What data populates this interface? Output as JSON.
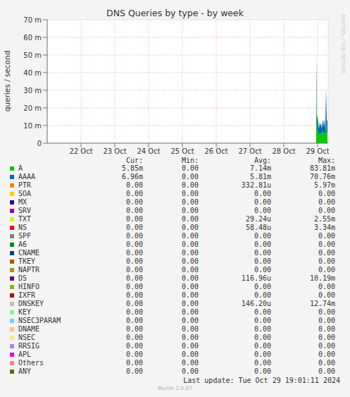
{
  "chart_data": {
    "type": "area",
    "title": "DNS Queries by type - by week",
    "y_label": "queries / second",
    "stacked": true,
    "grid": true,
    "x": [
      29.4583,
      29.4792,
      29.5,
      29.5208,
      29.5417,
      29.5625,
      29.5833,
      29.6042,
      29.625,
      29.6458,
      29.6667,
      29.6875,
      29.7083,
      29.7292,
      29.75,
      29.7708,
      29.7917
    ],
    "xlim": [
      21.5,
      29.8125
    ],
    "xticks": [
      {
        "value": 22.5,
        "label": "22 Oct"
      },
      {
        "value": 23.5,
        "label": "23 Oct"
      },
      {
        "value": 24.5,
        "label": "24 Oct"
      },
      {
        "value": 25.5,
        "label": "25 Oct"
      },
      {
        "value": 26.5,
        "label": "26 Oct"
      },
      {
        "value": 27.5,
        "label": "27 Oct"
      },
      {
        "value": 28.5,
        "label": "28 Oct"
      },
      {
        "value": 29.5,
        "label": "29 Oct"
      }
    ],
    "ylim": [
      0,
      0.07
    ],
    "yticks": [
      0,
      {
        "value": 0.01,
        "label": "10 m"
      },
      {
        "value": 0.02,
        "label": "20 m"
      },
      {
        "value": 0.03,
        "label": "30 m"
      },
      {
        "value": 0.04,
        "label": "40 m"
      },
      {
        "value": 0.05,
        "label": "50 m"
      },
      {
        "value": 0.06,
        "label": "60 m"
      },
      {
        "value": 0.07,
        "label": "70 m"
      }
    ],
    "legend_headers": [
      "Cur:",
      "Min:",
      "Avg:",
      "Max:"
    ],
    "footer": "Last update: Tue Oct 29 19:01:11 2024",
    "version": "Munin 2.0.67",
    "watermark": "RRDTOOL / TOBI OETIKER",
    "series": [
      {
        "name": "A",
        "color": "#00cc00",
        "values": [
          0.034,
          0.012,
          0.008,
          0.006,
          0.005,
          0.005,
          0.006,
          0.005,
          0.005,
          0.007,
          0.006,
          0.005,
          0.006,
          0.005,
          0.014,
          0.006,
          0.00585
        ],
        "stats": {
          "cur": "5.85m",
          "min": "0.00",
          "avg": "7.14m",
          "max": "83.81m"
        }
      },
      {
        "name": "AAAA",
        "color": "#0066b3",
        "values": [
          0.016,
          0.004,
          0.006,
          0.005,
          0.003,
          0.007,
          0.004,
          0.006,
          0.003,
          0.005,
          0.007,
          0.004,
          0.008,
          0.004,
          0.017,
          0.007,
          0.00696
        ],
        "stats": {
          "cur": "6.96m",
          "min": "0.00",
          "avg": "5.81m",
          "max": "70.76m"
        }
      },
      {
        "name": "PTR",
        "color": "#ff8000",
        "values": [
          0,
          0,
          0,
          0,
          0,
          0,
          0,
          0,
          0,
          0,
          0,
          0,
          0,
          0,
          0,
          0,
          0
        ],
        "stats": {
          "cur": "0.00",
          "min": "0.00",
          "avg": "332.81u",
          "max": "5.97m"
        }
      },
      {
        "name": "SOA",
        "color": "#ffcc00",
        "values": [
          0,
          0,
          0,
          0,
          0,
          0,
          0,
          0,
          0,
          0,
          0,
          0,
          0,
          0,
          0,
          0,
          0
        ],
        "stats": {
          "cur": "0.00",
          "min": "0.00",
          "avg": "0.00",
          "max": "0.00"
        }
      },
      {
        "name": "MX",
        "color": "#330099",
        "values": [
          0,
          0,
          0,
          0,
          0,
          0,
          0,
          0,
          0,
          0,
          0,
          0,
          0,
          0,
          0,
          0,
          0
        ],
        "stats": {
          "cur": "0.00",
          "min": "0.00",
          "avg": "0.00",
          "max": "0.00"
        }
      },
      {
        "name": "SRV",
        "color": "#990099",
        "values": [
          0,
          0,
          0,
          0,
          0,
          0,
          0,
          0,
          0,
          0,
          0,
          0,
          0,
          0,
          0,
          0,
          0
        ],
        "stats": {
          "cur": "0.00",
          "min": "0.00",
          "avg": "0.00",
          "max": "0.00"
        }
      },
      {
        "name": "TXT",
        "color": "#ccff00",
        "values": [
          0,
          0,
          0,
          0,
          0,
          0,
          0,
          0,
          0,
          0,
          0,
          0,
          0,
          0,
          0,
          0,
          0
        ],
        "stats": {
          "cur": "0.00",
          "min": "0.00",
          "avg": "29.24u",
          "max": "2.55m"
        }
      },
      {
        "name": "NS",
        "color": "#ff0000",
        "values": [
          0,
          0,
          0,
          0,
          0,
          0,
          0,
          0,
          0,
          0,
          0,
          0,
          0,
          0,
          0,
          0,
          0
        ],
        "stats": {
          "cur": "0.00",
          "min": "0.00",
          "avg": "58.48u",
          "max": "3.34m"
        }
      },
      {
        "name": "SPF",
        "color": "#808080",
        "values": [
          0,
          0,
          0,
          0,
          0,
          0,
          0,
          0,
          0,
          0,
          0,
          0,
          0,
          0,
          0,
          0,
          0
        ],
        "stats": {
          "cur": "0.00",
          "min": "0.00",
          "avg": "0.00",
          "max": "0.00"
        }
      },
      {
        "name": "A6",
        "color": "#008f00",
        "values": [
          0,
          0,
          0,
          0,
          0,
          0,
          0,
          0,
          0,
          0,
          0,
          0,
          0,
          0,
          0,
          0,
          0
        ],
        "stats": {
          "cur": "0.00",
          "min": "0.00",
          "avg": "0.00",
          "max": "0.00"
        }
      },
      {
        "name": "CNAME",
        "color": "#00487d",
        "values": [
          0,
          0,
          0,
          0,
          0,
          0,
          0,
          0,
          0,
          0,
          0,
          0,
          0,
          0,
          0,
          0,
          0
        ],
        "stats": {
          "cur": "0.00",
          "min": "0.00",
          "avg": "0.00",
          "max": "0.00"
        }
      },
      {
        "name": "TKEY",
        "color": "#b35a00",
        "values": [
          0,
          0,
          0,
          0,
          0,
          0,
          0,
          0,
          0,
          0,
          0,
          0,
          0,
          0,
          0,
          0,
          0
        ],
        "stats": {
          "cur": "0.00",
          "min": "0.00",
          "avg": "0.00",
          "max": "0.00"
        }
      },
      {
        "name": "NAPTR",
        "color": "#b38f00",
        "values": [
          0,
          0,
          0,
          0,
          0,
          0,
          0,
          0,
          0,
          0,
          0,
          0,
          0,
          0,
          0,
          0,
          0
        ],
        "stats": {
          "cur": "0.00",
          "min": "0.00",
          "avg": "0.00",
          "max": "0.00"
        }
      },
      {
        "name": "DS",
        "color": "#6b006b",
        "values": [
          0,
          0,
          0,
          0,
          0,
          0,
          0,
          0,
          0,
          0,
          0,
          0,
          0,
          0,
          0,
          0,
          0
        ],
        "stats": {
          "cur": "0.00",
          "min": "0.00",
          "avg": "116.96u",
          "max": "10.19m"
        }
      },
      {
        "name": "HINFO",
        "color": "#8fb300",
        "values": [
          0,
          0,
          0,
          0,
          0,
          0,
          0,
          0,
          0,
          0,
          0,
          0,
          0,
          0,
          0,
          0,
          0
        ],
        "stats": {
          "cur": "0.00",
          "min": "0.00",
          "avg": "0.00",
          "max": "0.00"
        }
      },
      {
        "name": "IXFR",
        "color": "#b30000",
        "values": [
          0,
          0,
          0,
          0,
          0,
          0,
          0,
          0,
          0,
          0,
          0,
          0,
          0,
          0,
          0,
          0,
          0
        ],
        "stats": {
          "cur": "0.00",
          "min": "0.00",
          "avg": "0.00",
          "max": "0.00"
        }
      },
      {
        "name": "DNSKEY",
        "color": "#bebebe",
        "values": [
          0,
          0,
          0,
          0,
          0,
          0,
          0,
          0,
          0,
          0,
          0,
          0,
          0,
          0,
          0,
          0,
          0
        ],
        "stats": {
          "cur": "0.00",
          "min": "0.00",
          "avg": "146.20u",
          "max": "12.74m"
        }
      },
      {
        "name": "KEY",
        "color": "#80ff80",
        "values": [
          0,
          0,
          0,
          0,
          0,
          0,
          0,
          0,
          0,
          0,
          0,
          0,
          0,
          0,
          0,
          0,
          0
        ],
        "stats": {
          "cur": "0.00",
          "min": "0.00",
          "avg": "0.00",
          "max": "0.00"
        }
      },
      {
        "name": "NSEC3PARAM",
        "color": "#80c9ff",
        "values": [
          0,
          0,
          0,
          0,
          0,
          0,
          0,
          0,
          0,
          0,
          0,
          0,
          0,
          0,
          0,
          0,
          0
        ],
        "stats": {
          "cur": "0.00",
          "min": "0.00",
          "avg": "0.00",
          "max": "0.00"
        }
      },
      {
        "name": "DNAME",
        "color": "#ffc080",
        "values": [
          0,
          0,
          0,
          0,
          0,
          0,
          0,
          0,
          0,
          0,
          0,
          0,
          0,
          0,
          0,
          0,
          0
        ],
        "stats": {
          "cur": "0.00",
          "min": "0.00",
          "avg": "0.00",
          "max": "0.00"
        }
      },
      {
        "name": "NSEC",
        "color": "#ffe680",
        "values": [
          0,
          0,
          0,
          0,
          0,
          0,
          0,
          0,
          0,
          0,
          0,
          0,
          0,
          0,
          0,
          0,
          0
        ],
        "stats": {
          "cur": "0.00",
          "min": "0.00",
          "avg": "0.00",
          "max": "0.00"
        }
      },
      {
        "name": "RRSIG",
        "color": "#aa80ff",
        "values": [
          0,
          0,
          0,
          0,
          0,
          0,
          0,
          0,
          0,
          0,
          0,
          0,
          0,
          0,
          0,
          0,
          0
        ],
        "stats": {
          "cur": "0.00",
          "min": "0.00",
          "avg": "0.00",
          "max": "0.00"
        }
      },
      {
        "name": "APL",
        "color": "#ee00cc",
        "values": [
          0,
          0,
          0,
          0,
          0,
          0,
          0,
          0,
          0,
          0,
          0,
          0,
          0,
          0,
          0,
          0,
          0
        ],
        "stats": {
          "cur": "0.00",
          "min": "0.00",
          "avg": "0.00",
          "max": "0.00"
        }
      },
      {
        "name": "Others",
        "color": "#ff8080",
        "values": [
          0,
          0,
          0,
          0,
          0,
          0,
          0,
          0,
          0,
          0,
          0,
          0,
          0,
          0,
          0,
          0,
          0
        ],
        "stats": {
          "cur": "0.00",
          "min": "0.00",
          "avg": "0.00",
          "max": "0.00"
        }
      },
      {
        "name": "ANY",
        "color": "#666600",
        "values": [
          0,
          0,
          0,
          0,
          0,
          0,
          0,
          0,
          0,
          0,
          0,
          0,
          0,
          0,
          0,
          0,
          0
        ],
        "stats": {
          "cur": "0.00",
          "min": "0.00",
          "avg": "0.00",
          "max": "0.00"
        }
      }
    ]
  }
}
